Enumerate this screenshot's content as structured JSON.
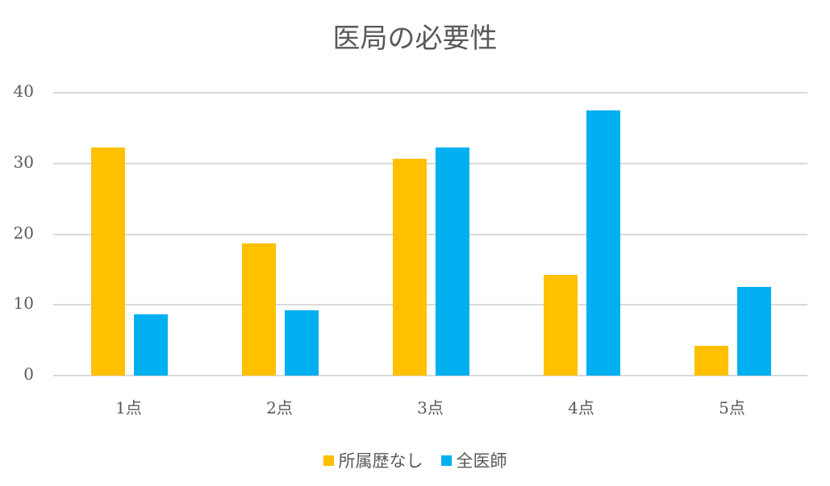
{
  "chart_data": {
    "type": "bar",
    "title": "医局の必要性",
    "xlabel": "",
    "ylabel": "",
    "categories": [
      "1点",
      "2点",
      "3点",
      "4点",
      "5点"
    ],
    "series": [
      {
        "name": "所属歴なし",
        "color": "#FFC000",
        "values": [
          32.3,
          18.7,
          30.7,
          14.3,
          4.2
        ]
      },
      {
        "name": "全医師",
        "color": "#00B0F0",
        "values": [
          8.7,
          9.2,
          32.2,
          37.5,
          12.5
        ]
      }
    ],
    "ylim": [
      0,
      40
    ],
    "yticks": [
      "0",
      "10",
      "20",
      "30",
      "40"
    ],
    "grid": true,
    "legend_position": "bottom"
  }
}
